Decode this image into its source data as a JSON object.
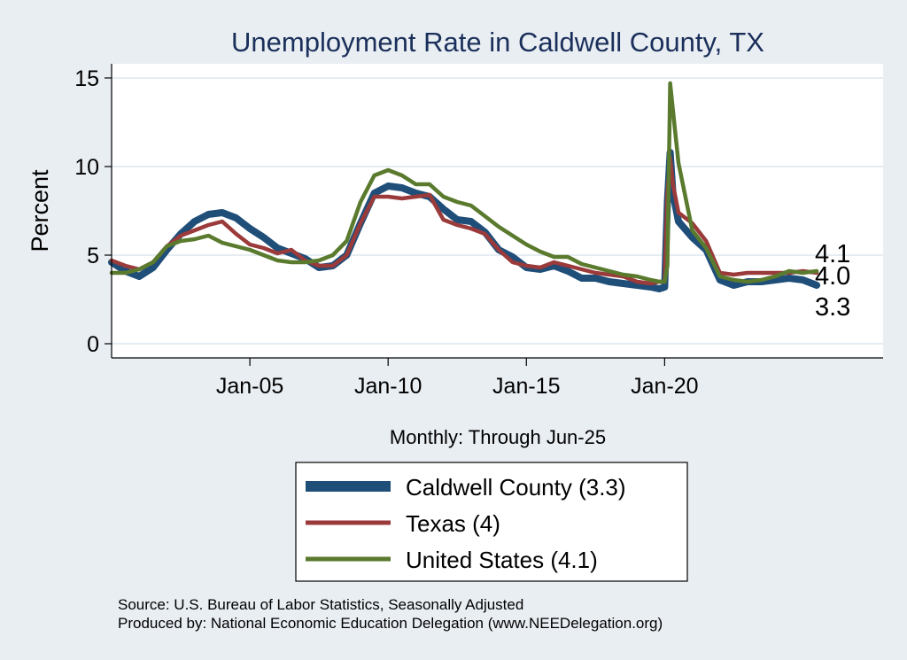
{
  "chart_data": {
    "type": "line",
    "title": "Unemployment Rate in Caldwell  County, TX",
    "ylabel": "Percent",
    "xlabel": "Monthly: Through Jun-25",
    "ylim": [
      0,
      15
    ],
    "yticks": [
      0,
      5,
      10,
      15
    ],
    "xlim": [
      2000.0,
      2027.9
    ],
    "xticks": [
      {
        "label": "Jan-05",
        "value": 2005.0
      },
      {
        "label": "Jan-10",
        "value": 2010.0
      },
      {
        "label": "Jan-15",
        "value": 2015.0
      },
      {
        "label": "Jan-20",
        "value": 2020.0
      }
    ],
    "series": [
      {
        "name": "Caldwell  County",
        "legend": "Caldwell  County (3.3)",
        "color": "#1f4e79",
        "end_label": "3.3",
        "points": [
          [
            2000.0,
            4.6
          ],
          [
            2000.5,
            4.1
          ],
          [
            2001.0,
            3.8
          ],
          [
            2001.5,
            4.3
          ],
          [
            2002.0,
            5.3
          ],
          [
            2002.5,
            6.2
          ],
          [
            2003.0,
            6.9
          ],
          [
            2003.5,
            7.3
          ],
          [
            2004.0,
            7.4
          ],
          [
            2004.5,
            7.1
          ],
          [
            2005.0,
            6.5
          ],
          [
            2005.5,
            6.0
          ],
          [
            2006.0,
            5.4
          ],
          [
            2006.5,
            5.1
          ],
          [
            2007.0,
            4.8
          ],
          [
            2007.5,
            4.3
          ],
          [
            2008.0,
            4.4
          ],
          [
            2008.5,
            5.0
          ],
          [
            2009.0,
            6.8
          ],
          [
            2009.5,
            8.5
          ],
          [
            2010.0,
            8.9
          ],
          [
            2010.5,
            8.8
          ],
          [
            2011.0,
            8.5
          ],
          [
            2011.5,
            8.3
          ],
          [
            2012.0,
            7.6
          ],
          [
            2012.5,
            7.0
          ],
          [
            2013.0,
            6.9
          ],
          [
            2013.5,
            6.3
          ],
          [
            2014.0,
            5.3
          ],
          [
            2014.5,
            4.9
          ],
          [
            2015.0,
            4.3
          ],
          [
            2015.5,
            4.2
          ],
          [
            2016.0,
            4.4
          ],
          [
            2016.5,
            4.1
          ],
          [
            2017.0,
            3.7
          ],
          [
            2017.5,
            3.7
          ],
          [
            2018.0,
            3.5
          ],
          [
            2018.5,
            3.4
          ],
          [
            2019.0,
            3.3
          ],
          [
            2019.5,
            3.2
          ],
          [
            2019.8,
            3.1
          ],
          [
            2020.0,
            3.2
          ],
          [
            2020.1,
            8.0
          ],
          [
            2020.2,
            10.8
          ],
          [
            2020.3,
            8.5
          ],
          [
            2020.5,
            6.9
          ],
          [
            2021.0,
            6.0
          ],
          [
            2021.5,
            5.3
          ],
          [
            2022.0,
            3.6
          ],
          [
            2022.5,
            3.3
          ],
          [
            2023.0,
            3.5
          ],
          [
            2023.5,
            3.5
          ],
          [
            2024.0,
            3.6
          ],
          [
            2024.5,
            3.7
          ],
          [
            2025.0,
            3.6
          ],
          [
            2025.5,
            3.3
          ]
        ]
      },
      {
        "name": "Texas",
        "legend": "Texas (4)",
        "color": "#9b3a3a",
        "end_label": "4.0",
        "points": [
          [
            2000.0,
            4.7
          ],
          [
            2000.5,
            4.4
          ],
          [
            2001.0,
            4.2
          ],
          [
            2001.5,
            4.6
          ],
          [
            2002.0,
            5.5
          ],
          [
            2002.5,
            6.1
          ],
          [
            2003.0,
            6.4
          ],
          [
            2003.5,
            6.7
          ],
          [
            2004.0,
            6.9
          ],
          [
            2004.5,
            6.2
          ],
          [
            2005.0,
            5.6
          ],
          [
            2005.5,
            5.4
          ],
          [
            2006.0,
            5.1
          ],
          [
            2006.5,
            5.3
          ],
          [
            2007.0,
            4.7
          ],
          [
            2007.5,
            4.4
          ],
          [
            2008.0,
            4.4
          ],
          [
            2008.5,
            5.0
          ],
          [
            2009.0,
            6.8
          ],
          [
            2009.5,
            8.3
          ],
          [
            2010.0,
            8.3
          ],
          [
            2010.5,
            8.2
          ],
          [
            2011.0,
            8.3
          ],
          [
            2011.5,
            8.4
          ],
          [
            2012.0,
            7.0
          ],
          [
            2012.5,
            6.7
          ],
          [
            2013.0,
            6.5
          ],
          [
            2013.5,
            6.2
          ],
          [
            2014.0,
            5.3
          ],
          [
            2014.5,
            4.6
          ],
          [
            2015.0,
            4.4
          ],
          [
            2015.5,
            4.3
          ],
          [
            2016.0,
            4.6
          ],
          [
            2016.5,
            4.4
          ],
          [
            2017.0,
            4.2
          ],
          [
            2017.5,
            4.0
          ],
          [
            2018.0,
            3.9
          ],
          [
            2018.5,
            3.8
          ],
          [
            2019.0,
            3.5
          ],
          [
            2019.5,
            3.4
          ],
          [
            2019.8,
            3.5
          ],
          [
            2020.0,
            3.5
          ],
          [
            2020.1,
            8.5
          ],
          [
            2020.2,
            10.5
          ],
          [
            2020.3,
            9.0
          ],
          [
            2020.5,
            7.4
          ],
          [
            2021.0,
            6.8
          ],
          [
            2021.5,
            5.8
          ],
          [
            2022.0,
            4.0
          ],
          [
            2022.5,
            3.9
          ],
          [
            2023.0,
            4.0
          ],
          [
            2023.5,
            4.0
          ],
          [
            2024.0,
            4.0
          ],
          [
            2024.5,
            4.0
          ],
          [
            2025.0,
            4.1
          ],
          [
            2025.5,
            4.0
          ]
        ]
      },
      {
        "name": "United States",
        "legend": "United States (4.1)",
        "color": "#5a7a2e",
        "end_label": "4.1",
        "points": [
          [
            2000.0,
            4.0
          ],
          [
            2000.5,
            4.0
          ],
          [
            2001.0,
            4.2
          ],
          [
            2001.5,
            4.6
          ],
          [
            2002.0,
            5.5
          ],
          [
            2002.5,
            5.8
          ],
          [
            2003.0,
            5.9
          ],
          [
            2003.5,
            6.1
          ],
          [
            2004.0,
            5.7
          ],
          [
            2004.5,
            5.5
          ],
          [
            2005.0,
            5.3
          ],
          [
            2005.5,
            5.0
          ],
          [
            2006.0,
            4.7
          ],
          [
            2006.5,
            4.6
          ],
          [
            2007.0,
            4.6
          ],
          [
            2007.5,
            4.7
          ],
          [
            2008.0,
            5.0
          ],
          [
            2008.5,
            5.8
          ],
          [
            2009.0,
            8.0
          ],
          [
            2009.5,
            9.5
          ],
          [
            2010.0,
            9.8
          ],
          [
            2010.5,
            9.5
          ],
          [
            2011.0,
            9.0
          ],
          [
            2011.5,
            9.0
          ],
          [
            2012.0,
            8.3
          ],
          [
            2012.5,
            8.0
          ],
          [
            2013.0,
            7.8
          ],
          [
            2013.5,
            7.2
          ],
          [
            2014.0,
            6.6
          ],
          [
            2014.5,
            6.1
          ],
          [
            2015.0,
            5.6
          ],
          [
            2015.5,
            5.2
          ],
          [
            2016.0,
            4.9
          ],
          [
            2016.5,
            4.9
          ],
          [
            2017.0,
            4.5
          ],
          [
            2017.5,
            4.3
          ],
          [
            2018.0,
            4.1
          ],
          [
            2018.5,
            3.9
          ],
          [
            2019.0,
            3.8
          ],
          [
            2019.5,
            3.6
          ],
          [
            2019.8,
            3.5
          ],
          [
            2020.0,
            3.5
          ],
          [
            2020.1,
            4.4
          ],
          [
            2020.2,
            14.7
          ],
          [
            2020.3,
            13.2
          ],
          [
            2020.5,
            10.2
          ],
          [
            2021.0,
            6.4
          ],
          [
            2021.5,
            5.4
          ],
          [
            2022.0,
            3.8
          ],
          [
            2022.5,
            3.6
          ],
          [
            2023.0,
            3.5
          ],
          [
            2023.5,
            3.6
          ],
          [
            2024.0,
            3.8
          ],
          [
            2024.5,
            4.1
          ],
          [
            2025.0,
            4.0
          ],
          [
            2025.5,
            4.1
          ]
        ]
      }
    ],
    "source_lines": [
      "Source: U.S. Bureau of Labor Statistics, Seasonally Adjusted",
      "Produced by: National Economic Education Delegation (www.NEEDelegation.org)"
    ]
  }
}
